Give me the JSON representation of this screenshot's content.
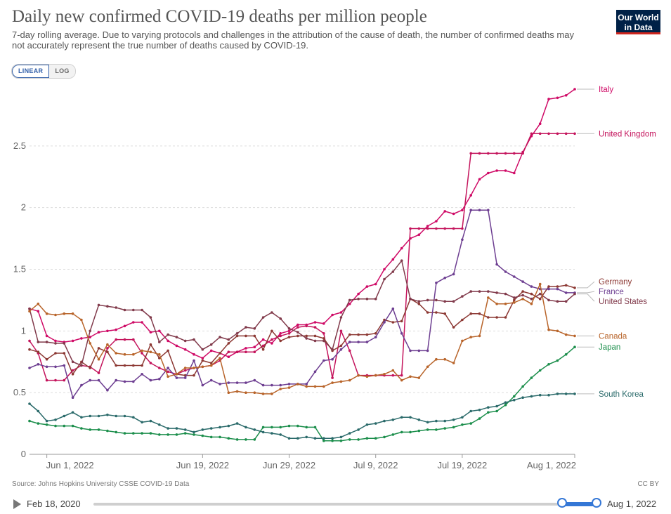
{
  "header": {
    "title": "Daily new confirmed COVID-19 deaths per million people",
    "subtitle": "7-day rolling average. Due to varying protocols and challenges in the attribution of the cause of death, the number of confirmed deaths may not accurately represent the true number of deaths caused by COVID-19.",
    "logo_line1": "Our World",
    "logo_line2": "in Data"
  },
  "controls": {
    "linear_label": "LINEAR",
    "log_label": "LOG",
    "active_scale": "linear"
  },
  "footer": {
    "source": "Source: Johns Hopkins University CSSE COVID-19 Data",
    "license": "CC BY"
  },
  "timeline": {
    "start_label": "Feb 18, 2020",
    "end_label": "Aug 1, 2022"
  },
  "chart_data": {
    "type": "line",
    "x_start": "2022-05-30",
    "x_end": "2022-08-01",
    "x_ticks": [
      {
        "date": "2022-06-01",
        "label": "Jun 1, 2022"
      },
      {
        "date": "2022-06-19",
        "label": "Jun 19, 2022"
      },
      {
        "date": "2022-06-29",
        "label": "Jun 29, 2022"
      },
      {
        "date": "2022-07-09",
        "label": "Jul 9, 2022"
      },
      {
        "date": "2022-07-19",
        "label": "Jul 19, 2022"
      },
      {
        "date": "2022-08-01",
        "label": "Aug 1, 2022"
      }
    ],
    "y_ticks": [
      0,
      0.5,
      1,
      1.5,
      2,
      2.5
    ],
    "y_tick_labels": [
      "0",
      "0.5",
      "1",
      "1.5",
      "2",
      "2.5"
    ],
    "ylim": [
      0,
      3.0
    ],
    "grid": "horizontal-dashed",
    "legend": "right-end-labels",
    "series": [
      {
        "name": "Italy",
        "color": "#cf0a66",
        "values": [
          1.18,
          1.16,
          0.96,
          0.92,
          0.91,
          0.92,
          0.94,
          0.95,
          0.99,
          1.0,
          1.01,
          1.04,
          1.07,
          1.07,
          0.99,
          1.0,
          0.92,
          0.88,
          0.85,
          0.81,
          0.78,
          0.84,
          0.82,
          0.79,
          0.83,
          0.86,
          0.87,
          0.93,
          0.9,
          0.98,
          1.0,
          1.05,
          1.05,
          1.07,
          1.06,
          1.13,
          1.15,
          1.22,
          1.3,
          1.36,
          1.38,
          1.5,
          1.58,
          1.67,
          1.75,
          1.78,
          1.85,
          1.89,
          1.97,
          1.95,
          1.98,
          2.1,
          2.23,
          2.28,
          2.3,
          2.3,
          2.28,
          2.45,
          2.58,
          2.68,
          2.88,
          2.89,
          2.91,
          2.96
        ]
      },
      {
        "name": "United Kingdom",
        "color": "#c4145c",
        "values": [
          0.92,
          0.82,
          0.6,
          0.6,
          0.6,
          0.68,
          0.72,
          0.71,
          0.66,
          0.86,
          0.93,
          0.93,
          0.93,
          0.82,
          0.74,
          0.7,
          0.67,
          0.65,
          0.68,
          0.7,
          0.71,
          0.72,
          0.76,
          0.83,
          0.83,
          0.83,
          0.83,
          0.88,
          0.93,
          0.96,
          0.98,
          1.03,
          1.04,
          1.03,
          0.98,
          0.62,
          1.0,
          0.84,
          0.64,
          0.64,
          0.64,
          0.64,
          0.64,
          0.64,
          1.83,
          1.83,
          1.83,
          1.83,
          1.83,
          1.83,
          1.83,
          2.44,
          2.44,
          2.44,
          2.44,
          2.44,
          2.44,
          2.44,
          2.6,
          2.6,
          2.6,
          2.6,
          2.6,
          2.6
        ]
      },
      {
        "name": "Germany",
        "color": "#8c3833",
        "values": [
          0.85,
          0.83,
          0.77,
          0.82,
          0.82,
          0.65,
          0.75,
          0.7,
          0.86,
          0.83,
          0.72,
          0.72,
          0.72,
          0.72,
          0.89,
          0.78,
          0.84,
          0.65,
          0.64,
          0.64,
          0.76,
          0.74,
          0.82,
          0.9,
          0.96,
          0.96,
          0.96,
          0.85,
          1.0,
          0.92,
          0.95,
          0.96,
          0.96,
          0.96,
          0.94,
          0.84,
          0.88,
          0.97,
          0.97,
          0.97,
          0.98,
          1.09,
          1.07,
          1.08,
          1.26,
          1.22,
          1.15,
          1.15,
          1.14,
          1.03,
          1.09,
          1.14,
          1.14,
          1.11,
          1.11,
          1.11,
          1.25,
          1.32,
          1.3,
          1.26,
          1.36,
          1.36,
          1.37,
          1.35
        ]
      },
      {
        "name": "France",
        "color": "#6d3e91",
        "values": [
          0.7,
          0.73,
          0.71,
          0.71,
          0.72,
          0.46,
          0.56,
          0.6,
          0.6,
          0.52,
          0.6,
          0.59,
          0.59,
          0.65,
          0.6,
          0.61,
          0.7,
          0.62,
          0.62,
          0.76,
          0.56,
          0.6,
          0.57,
          0.58,
          0.58,
          0.58,
          0.6,
          0.56,
          0.56,
          0.56,
          0.57,
          0.57,
          0.57,
          0.67,
          0.76,
          0.77,
          0.85,
          0.91,
          0.91,
          0.91,
          0.95,
          1.07,
          1.18,
          0.98,
          0.84,
          0.84,
          0.84,
          1.39,
          1.43,
          1.46,
          1.74,
          1.98,
          1.98,
          1.98,
          1.54,
          1.48,
          1.44,
          1.4,
          1.36,
          1.34,
          1.34,
          1.34,
          1.31,
          1.31
        ]
      },
      {
        "name": "United States",
        "color": "#813a4b",
        "values": [
          1.18,
          0.91,
          0.91,
          0.9,
          0.9,
          0.75,
          0.72,
          1.0,
          1.21,
          1.2,
          1.19,
          1.17,
          1.17,
          1.17,
          1.11,
          0.91,
          0.97,
          0.95,
          0.92,
          0.93,
          0.85,
          0.89,
          0.95,
          0.93,
          0.98,
          1.03,
          1.02,
          1.11,
          1.15,
          1.1,
          1.02,
          0.99,
          0.94,
          0.92,
          0.92,
          0.85,
          1.11,
          1.25,
          1.26,
          1.26,
          1.26,
          1.42,
          1.48,
          1.57,
          1.26,
          1.24,
          1.25,
          1.25,
          1.24,
          1.24,
          1.28,
          1.32,
          1.32,
          1.32,
          1.31,
          1.3,
          1.27,
          1.29,
          1.26,
          1.3,
          1.25,
          1.24,
          1.24,
          1.3
        ]
      },
      {
        "name": "Canada",
        "color": "#b8642a",
        "values": [
          1.16,
          1.22,
          1.14,
          1.13,
          1.14,
          1.14,
          1.09,
          0.9,
          0.77,
          0.89,
          0.82,
          0.81,
          0.81,
          0.84,
          0.83,
          0.81,
          0.63,
          0.65,
          0.7,
          0.7,
          0.71,
          0.72,
          0.78,
          0.5,
          0.51,
          0.5,
          0.5,
          0.49,
          0.49,
          0.53,
          0.54,
          0.57,
          0.55,
          0.55,
          0.55,
          0.58,
          0.59,
          0.6,
          0.64,
          0.63,
          0.64,
          0.65,
          0.68,
          0.6,
          0.63,
          0.62,
          0.71,
          0.77,
          0.77,
          0.74,
          0.92,
          0.95,
          0.96,
          1.27,
          1.22,
          1.22,
          1.23,
          1.26,
          1.22,
          1.38,
          1.01,
          1.0,
          0.97,
          0.96
        ]
      },
      {
        "name": "Japan",
        "color": "#1b8e4b",
        "values": [
          0.27,
          0.25,
          0.24,
          0.23,
          0.23,
          0.23,
          0.21,
          0.2,
          0.2,
          0.19,
          0.18,
          0.17,
          0.17,
          0.17,
          0.17,
          0.16,
          0.16,
          0.16,
          0.17,
          0.16,
          0.15,
          0.14,
          0.14,
          0.13,
          0.12,
          0.12,
          0.12,
          0.22,
          0.22,
          0.22,
          0.23,
          0.23,
          0.22,
          0.22,
          0.11,
          0.11,
          0.11,
          0.12,
          0.12,
          0.13,
          0.13,
          0.14,
          0.16,
          0.18,
          0.18,
          0.19,
          0.2,
          0.2,
          0.21,
          0.22,
          0.24,
          0.25,
          0.29,
          0.34,
          0.35,
          0.4,
          0.47,
          0.55,
          0.62,
          0.68,
          0.73,
          0.76,
          0.81,
          0.87
        ]
      },
      {
        "name": "South Korea",
        "color": "#2a6a6a",
        "values": [
          0.41,
          0.35,
          0.27,
          0.28,
          0.31,
          0.34,
          0.3,
          0.31,
          0.31,
          0.32,
          0.31,
          0.31,
          0.3,
          0.26,
          0.27,
          0.24,
          0.21,
          0.21,
          0.2,
          0.18,
          0.2,
          0.21,
          0.22,
          0.23,
          0.25,
          0.22,
          0.2,
          0.18,
          0.17,
          0.16,
          0.13,
          0.13,
          0.14,
          0.13,
          0.13,
          0.13,
          0.14,
          0.17,
          0.2,
          0.24,
          0.25,
          0.27,
          0.28,
          0.3,
          0.3,
          0.28,
          0.26,
          0.27,
          0.27,
          0.28,
          0.3,
          0.35,
          0.36,
          0.38,
          0.39,
          0.42,
          0.44,
          0.46,
          0.47,
          0.48,
          0.48,
          0.49,
          0.49,
          0.49
        ]
      }
    ]
  }
}
